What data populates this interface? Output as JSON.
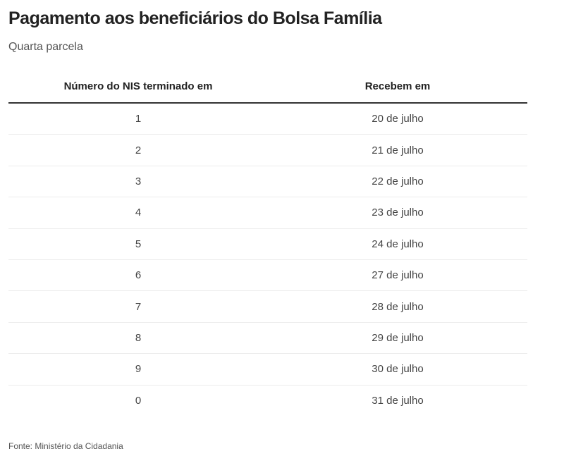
{
  "title": "Pagamento aos beneficiários do Bolsa Família",
  "subtitle": "Quarta parcela",
  "table": {
    "headers": [
      "Número do NIS terminado em",
      "Recebem em"
    ],
    "rows": [
      {
        "nis": "1",
        "date": "20 de julho"
      },
      {
        "nis": "2",
        "date": "21 de julho"
      },
      {
        "nis": "3",
        "date": "22 de julho"
      },
      {
        "nis": "4",
        "date": "23 de julho"
      },
      {
        "nis": "5",
        "date": "24 de julho"
      },
      {
        "nis": "6",
        "date": "27 de julho"
      },
      {
        "nis": "7",
        "date": "28 de julho"
      },
      {
        "nis": "8",
        "date": "29 de julho"
      },
      {
        "nis": "9",
        "date": "30 de julho"
      },
      {
        "nis": "0",
        "date": "31 de julho"
      }
    ]
  },
  "source": "Fonte: Ministério da Cidadania"
}
